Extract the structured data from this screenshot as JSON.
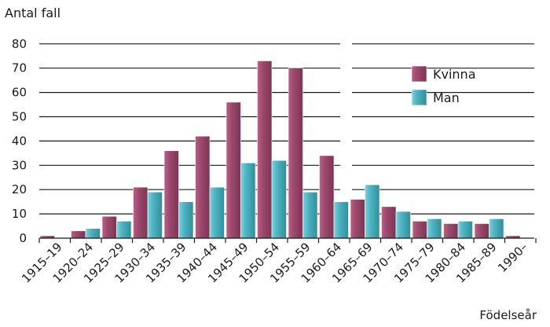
{
  "chart_data": {
    "type": "bar",
    "ylabel": "Antal fall",
    "xlabel": "Födelseår",
    "categories": [
      "1915–19",
      "1920–24",
      "1925–29",
      "1930–34",
      "1935–39",
      "1940–44",
      "1945–49",
      "1950–54",
      "1955–59",
      "1960–64",
      "1965–69",
      "1970–74",
      "1975–79",
      "1980–84",
      "1985–89",
      "1990–"
    ],
    "ylim": [
      0,
      80
    ],
    "yticks": [
      0,
      10,
      20,
      30,
      40,
      50,
      60,
      70,
      80
    ],
    "grid": true,
    "legend_position": "right",
    "series": [
      {
        "name": "Kvinna",
        "color": "#9e4a6e",
        "values": [
          1,
          3,
          9,
          21,
          36,
          42,
          56,
          73,
          70,
          34,
          16,
          13,
          7,
          6,
          6,
          1
        ]
      },
      {
        "name": "Man",
        "color": "#4fb4c2",
        "values": [
          0,
          4,
          7,
          19,
          15,
          21,
          31,
          32,
          19,
          15,
          22,
          11,
          8,
          7,
          8,
          0
        ]
      }
    ]
  }
}
